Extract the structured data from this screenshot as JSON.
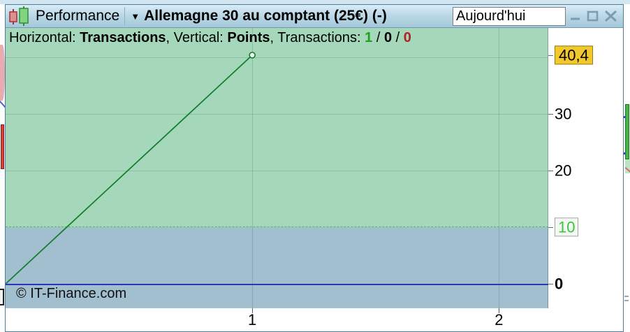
{
  "window": {
    "icon": "candlestick-chart-icon",
    "tool_label": "Performance",
    "dropdown_icon": "▼",
    "instrument_title": "Allemagne 30 au comptant (25€) (-)",
    "timeframe_value": "Aujourd'hui",
    "controls": [
      "minimize",
      "maximize",
      "close"
    ]
  },
  "info_bar": {
    "horizontal_label": "Horizontal: ",
    "horizontal_value": "Transactions",
    "sep1": ", ",
    "vertical_label": "Vertical: ",
    "vertical_value": "Points",
    "sep2": ", ",
    "transactions_label": "Transactions: ",
    "wins": "1",
    "slash1": " / ",
    "breakeven": "0",
    "slash2": " / ",
    "losses": "0"
  },
  "watermark": "© IT-Finance.com",
  "colors": {
    "title_bar": "#b9d7e6",
    "upper_zone": "#a5d7ba",
    "lower_zone": "#a2bfcf",
    "performance_line": "#117c2c",
    "threshold_line": "#3ecb3e",
    "zero_line": "#2a35c0",
    "current_value_bg": "#f2c82c",
    "wins_color": "#1ea21e",
    "losses_color": "#b22222"
  },
  "chart_data": {
    "type": "line",
    "xlabel": "Transactions",
    "ylabel": "Points",
    "x": [
      0,
      1
    ],
    "y": [
      0,
      40.4
    ],
    "xlim": [
      0,
      2.2
    ],
    "ylim": [
      -4.3,
      45.2
    ],
    "x_ticks": [
      1,
      2
    ],
    "y_gridlines": [
      20,
      30,
      40
    ],
    "y_axis_labels": [
      {
        "value": 40.4,
        "text": "40,4",
        "style": "current"
      },
      {
        "value": 30,
        "text": "30",
        "style": "normal"
      },
      {
        "value": 20,
        "text": "20",
        "style": "normal"
      },
      {
        "value": 10,
        "text": "10",
        "style": "threshold"
      },
      {
        "value": 0,
        "text": "0",
        "style": "zero"
      }
    ],
    "threshold_level": 10,
    "zero_level": 0,
    "grid": true,
    "marker_last_point": true
  }
}
